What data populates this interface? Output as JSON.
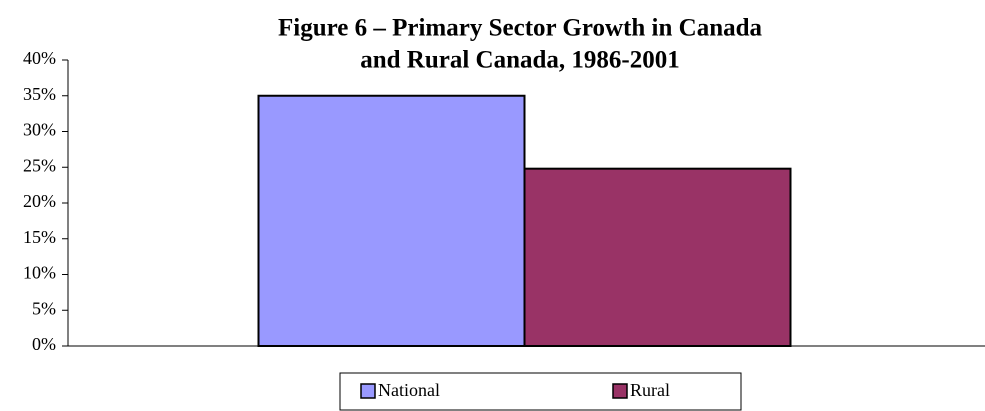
{
  "chart_data": {
    "type": "bar",
    "title": [
      "Figure 6 – Primary Sector Growth in Canada",
      "and Rural Canada, 1986-2001"
    ],
    "categories": [
      null
    ],
    "series": [
      {
        "name": "National",
        "color": "#9999ff",
        "values": [
          35
        ]
      },
      {
        "name": "Rural",
        "color": "#993366",
        "values": [
          24.8
        ]
      }
    ],
    "ylim": [
      0,
      40
    ],
    "yticks": [
      {
        "value": 0,
        "label": "0%"
      },
      {
        "value": 5,
        "label": "5%"
      },
      {
        "value": 10,
        "label": "10%"
      },
      {
        "value": 15,
        "label": "15%"
      },
      {
        "value": 20,
        "label": "20%"
      },
      {
        "value": 25,
        "label": "25%"
      },
      {
        "value": 30,
        "label": "30%"
      },
      {
        "value": 35,
        "label": "35%"
      },
      {
        "value": 40,
        "label": "40%"
      }
    ],
    "grid": false,
    "legend": "bottom"
  }
}
